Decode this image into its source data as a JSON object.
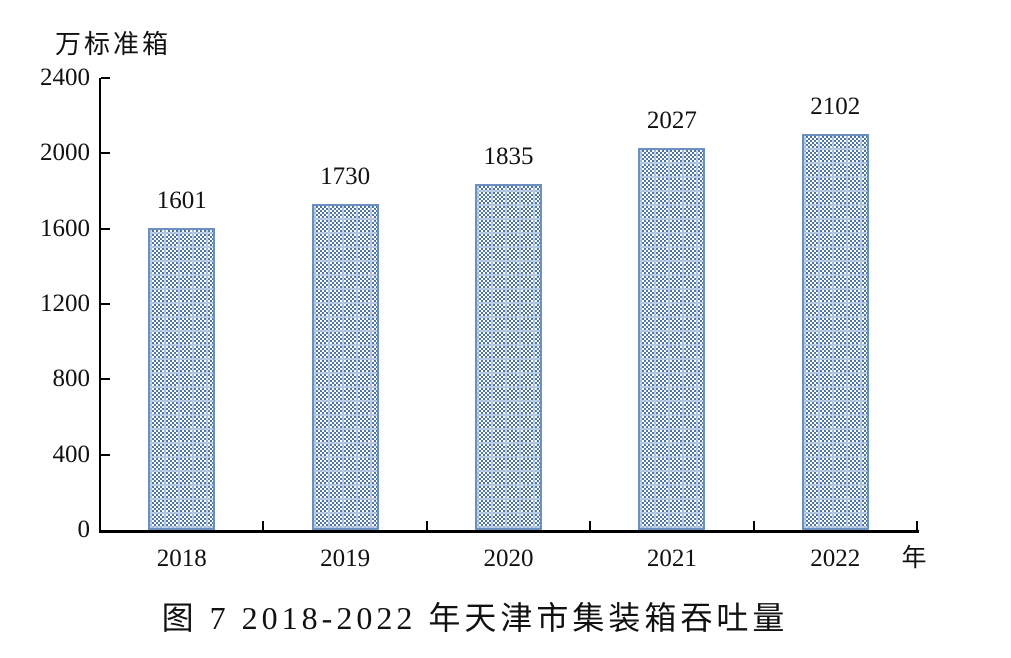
{
  "chart_data": {
    "type": "bar",
    "categories": [
      "2018",
      "2019",
      "2020",
      "2021",
      "2022"
    ],
    "values": [
      1601,
      1730,
      1835,
      2027,
      2102
    ],
    "title": "图 7  2018-2022 年天津市集装箱吞吐量",
    "xlabel": "年",
    "ylabel": "万标准箱",
    "ylim": [
      0,
      2400
    ],
    "ytick_step": 400,
    "yticks": [
      0,
      400,
      800,
      1200,
      1600,
      2000,
      2400
    ],
    "grid": false,
    "legend": "none",
    "data_labels": true,
    "bar_fill_pattern": "trellis-checker",
    "colors": {
      "bar_border": "#6b90bf",
      "bar_checker": "#4e75a6",
      "bar_lattice": "#b8cce4",
      "axis": "#000000",
      "text": "#111111"
    }
  }
}
